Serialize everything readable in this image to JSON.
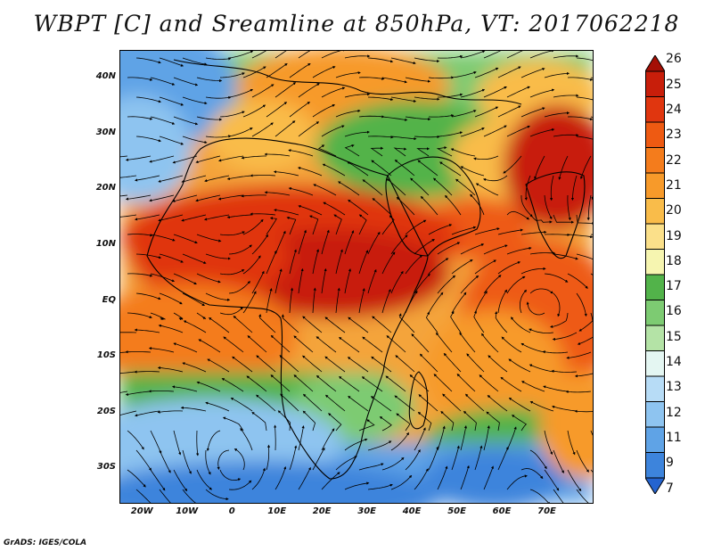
{
  "title": "WBPT [C] and Sreamline at 850hPa, VT: 2017062218",
  "credit": "GrADS: IGES/COLA",
  "map": {
    "lon_range": [
      -25,
      80
    ],
    "lat_range": [
      -36,
      45
    ],
    "lat_ticks": [
      {
        "label": "40N",
        "lat": 40
      },
      {
        "label": "30N",
        "lat": 30
      },
      {
        "label": "20N",
        "lat": 20
      },
      {
        "label": "10N",
        "lat": 10
      },
      {
        "label": "EQ",
        "lat": 0
      },
      {
        "label": "10S",
        "lat": -10
      },
      {
        "label": "20S",
        "lat": -20
      },
      {
        "label": "30S",
        "lat": -30
      }
    ],
    "lon_ticks": [
      {
        "label": "20W",
        "lon": -20
      },
      {
        "label": "10W",
        "lon": -10
      },
      {
        "label": "0",
        "lon": 0
      },
      {
        "label": "10E",
        "lon": 10
      },
      {
        "label": "20E",
        "lon": 20
      },
      {
        "label": "30E",
        "lon": 30
      },
      {
        "label": "40E",
        "lon": 40
      },
      {
        "label": "50E",
        "lon": 50
      },
      {
        "label": "60E",
        "lon": 60
      },
      {
        "label": "70E",
        "lon": 70
      }
    ]
  },
  "colorbar": {
    "labels": [
      "26",
      "25",
      "24",
      "23",
      "22",
      "21",
      "20",
      "19",
      "18",
      "17",
      "16",
      "15",
      "14",
      "13",
      "12",
      "11",
      "9",
      "7"
    ],
    "colors": [
      "#a50f05",
      "#c81e0a",
      "#e0360f",
      "#ee5a12",
      "#f47c1c",
      "#f79a2a",
      "#f9bc4a",
      "#fbe08a",
      "#f6f5b0",
      "#52b34a",
      "#7dcb72",
      "#b4e3a6",
      "#e4f6f2",
      "#b7dcf6",
      "#8ec4f0",
      "#5fa3e6",
      "#3d84dc",
      "#2564cf"
    ]
  }
}
